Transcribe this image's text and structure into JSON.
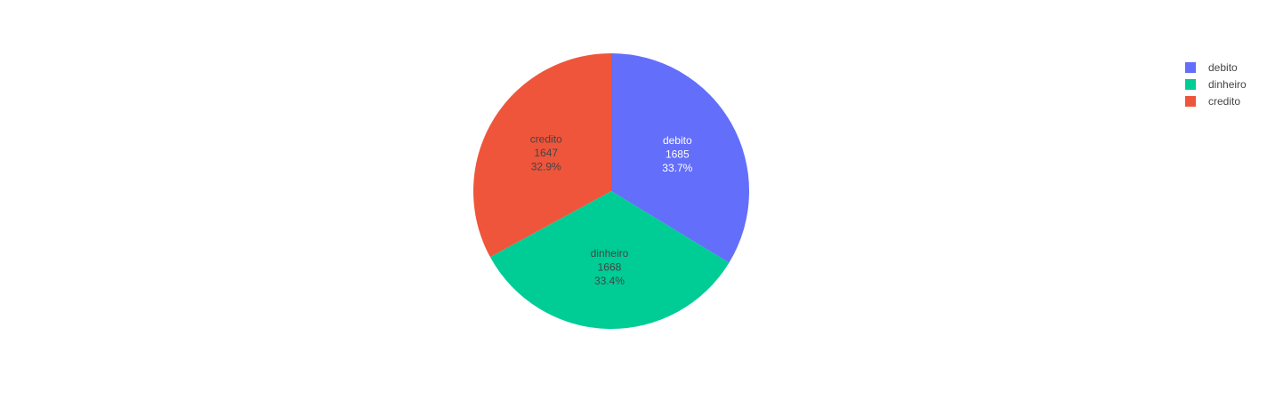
{
  "chart_data": {
    "type": "pie",
    "slices": [
      {
        "label": "debito",
        "value": 1685,
        "percent": "33.7%",
        "color": "#636efa",
        "text_color": "#ffffff"
      },
      {
        "label": "dinheiro",
        "value": 1668,
        "percent": "33.4%",
        "color": "#00cc96",
        "text_color": "#444444"
      },
      {
        "label": "credito",
        "value": 1647,
        "percent": "32.9%",
        "color": "#ef553b",
        "text_color": "#444444"
      }
    ],
    "legend": {
      "placement": "top-right",
      "entries": [
        {
          "label": "debito",
          "color": "#636efa"
        },
        {
          "label": "dinheiro",
          "color": "#00cc96"
        },
        {
          "label": "credito",
          "color": "#ef553b"
        }
      ]
    },
    "start": "top",
    "direction": "clockwise"
  }
}
